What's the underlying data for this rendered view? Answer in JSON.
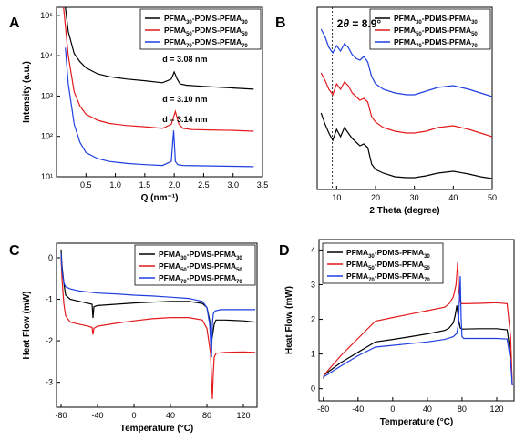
{
  "chart_data": [
    {
      "id": "A",
      "type": "line",
      "panel_label": "A",
      "xlabel": "Q (nm⁻¹)",
      "ylabel": "Intensity (a.u.)",
      "xlim": [
        0,
        3.5
      ],
      "ylim_log10": [
        1,
        5.2
      ],
      "yscale": "log",
      "xticks": [
        0.5,
        1.0,
        1.5,
        2.0,
        2.5,
        3.0,
        3.5
      ],
      "xtick_labels": [
        "0.5",
        "1.0",
        "1.5",
        "2.0",
        "2.5",
        "3.0",
        "3.5"
      ],
      "yticks_log10": [
        1,
        2,
        3,
        4,
        5
      ],
      "ytick_labels": [
        "10¹",
        "10²",
        "10³",
        "10⁴",
        "10⁵"
      ],
      "legend_position": "top-right",
      "series": [
        {
          "name": "PFMA30-PDMS-PFMA30",
          "name_parts": [
            "PFMA",
            "30",
            "-PDMS-PFMA",
            "30"
          ],
          "color": "#000000",
          "x": [
            0.15,
            0.2,
            0.3,
            0.4,
            0.5,
            0.7,
            0.9,
            1.2,
            1.5,
            1.8,
            1.95,
            2.0,
            2.05,
            2.1,
            2.2,
            2.5,
            3.0,
            3.35
          ],
          "y_log10": [
            5.2,
            4.6,
            4.05,
            3.85,
            3.7,
            3.55,
            3.48,
            3.42,
            3.38,
            3.33,
            3.42,
            3.6,
            3.42,
            3.3,
            3.27,
            3.24,
            3.2,
            3.17
          ]
        },
        {
          "name": "PFMA50-PDMS-PFMA50",
          "name_parts": [
            "PFMA",
            "50",
            "-PDMS-PFMA",
            "50"
          ],
          "color": "#e41a1c",
          "x": [
            0.12,
            0.2,
            0.3,
            0.4,
            0.5,
            0.7,
            0.9,
            1.2,
            1.5,
            1.8,
            1.95,
            2.02,
            2.08,
            2.15,
            2.3,
            2.6,
            3.0,
            3.35
          ],
          "y_log10": [
            5.2,
            4.0,
            3.1,
            2.75,
            2.55,
            2.4,
            2.32,
            2.27,
            2.24,
            2.2,
            2.3,
            2.62,
            2.3,
            2.2,
            2.17,
            2.16,
            2.15,
            2.13
          ]
        },
        {
          "name": "PFMA70-PDMS-PFMA70",
          "name_parts": [
            "PFMA",
            "70",
            "-PDMS-PFMA",
            "70"
          ],
          "color": "#1f3fe0",
          "x": [
            0.15,
            0.2,
            0.3,
            0.4,
            0.5,
            0.7,
            0.9,
            1.2,
            1.5,
            1.8,
            1.95,
            1.99,
            2.02,
            2.06,
            2.15,
            2.5,
            3.0,
            3.35
          ],
          "y_log10": [
            4.2,
            3.3,
            2.3,
            1.85,
            1.6,
            1.45,
            1.38,
            1.33,
            1.3,
            1.28,
            1.38,
            2.15,
            1.38,
            1.3,
            1.28,
            1.27,
            1.26,
            1.25
          ]
        }
      ],
      "annotations": [
        {
          "text": "d = 3.08 nm",
          "x": 1.8,
          "y_log10": 3.85
        },
        {
          "text": "d = 3.10 nm",
          "x": 1.8,
          "y_log10": 2.85
        },
        {
          "text": "d = 3.14 nm",
          "x": 1.8,
          "y_log10": 2.35
        }
      ]
    },
    {
      "id": "B",
      "type": "line",
      "panel_label": "B",
      "xlabel": "2 Theta (degree)",
      "ylabel": "",
      "xlim": [
        5,
        50
      ],
      "ylim": [
        0,
        100
      ],
      "xticks": [
        10,
        20,
        30,
        40,
        50
      ],
      "xtick_labels": [
        "10",
        "20",
        "30",
        "40",
        "50"
      ],
      "yticks": [],
      "legend_position": "top-right",
      "dashed_line_x": 8.9,
      "annotation_parts": [
        "2",
        "θ",
        " = 8.9°"
      ],
      "series": [
        {
          "name": "PFMA30-PDMS-PFMA30",
          "name_parts": [
            "PFMA",
            "30",
            "-PDMS-PFMA",
            "30"
          ],
          "color": "#000000",
          "x": [
            6,
            7,
            8,
            9,
            10,
            11,
            12,
            13,
            14,
            15,
            16,
            17,
            18,
            19,
            20,
            22,
            25,
            28,
            30,
            33,
            36,
            40,
            44,
            47,
            50
          ],
          "y": [
            42,
            36,
            31,
            27,
            33,
            29,
            34,
            31,
            28,
            26,
            24,
            25,
            23,
            14,
            11,
            9,
            7,
            6.5,
            6.5,
            7.5,
            9,
            10,
            8.5,
            7,
            6
          ]
        },
        {
          "name": "PFMA50-PDMS-PFMA50",
          "name_parts": [
            "PFMA",
            "50",
            "-PDMS-PFMA",
            "50"
          ],
          "color": "#e41a1c",
          "x": [
            6,
            7,
            8,
            9,
            10,
            11,
            12,
            13,
            14,
            15,
            16,
            17,
            18,
            19,
            20,
            22,
            25,
            28,
            30,
            33,
            36,
            40,
            44,
            47,
            50
          ],
          "y": [
            64,
            60,
            55,
            52,
            58,
            55,
            59,
            57,
            53,
            51,
            49,
            50,
            48,
            40,
            37,
            34,
            32,
            31,
            31,
            32,
            34,
            35,
            33,
            31,
            29
          ]
        },
        {
          "name": "PFMA70-PDMS-PFMA70",
          "name_parts": [
            "PFMA",
            "70",
            "-PDMS-PFMA",
            "70"
          ],
          "color": "#1f3fe0",
          "x": [
            6,
            7,
            8,
            9,
            10,
            11,
            12,
            13,
            14,
            15,
            16,
            17,
            18,
            19,
            20,
            22,
            25,
            28,
            30,
            33,
            36,
            40,
            44,
            47,
            50
          ],
          "y": [
            88,
            84,
            78,
            75,
            79,
            76,
            80,
            78,
            74,
            72,
            71,
            73,
            70,
            62,
            58,
            55,
            53,
            52,
            52,
            54,
            56,
            57,
            55,
            53,
            51
          ]
        }
      ]
    },
    {
      "id": "C",
      "type": "line",
      "panel_label": "C",
      "xlabel": "Temperature (°C)",
      "ylabel": "Heat Flow (mW)",
      "xlim": [
        -85,
        135
      ],
      "ylim": [
        -3.6,
        0.35
      ],
      "xticks": [
        -80,
        -40,
        0,
        40,
        80,
        120
      ],
      "xtick_labels": [
        "-80",
        "-40",
        "0",
        "40",
        "80",
        "120"
      ],
      "yticks": [
        0,
        -1,
        -2,
        -3
      ],
      "ytick_labels": [
        "0",
        "-1",
        "-2",
        "-3"
      ],
      "legend_position": "top-right",
      "series": [
        {
          "name": "PFMA30-PDMS-PFMA30",
          "name_parts": [
            "PFMA",
            "30",
            "-PDMS-PFMA",
            "30"
          ],
          "color": "#000000",
          "x": [
            -80,
            -79,
            -77,
            -75,
            -70,
            -60,
            -50,
            -46,
            -45,
            -44,
            -40,
            -20,
            0,
            20,
            40,
            60,
            75,
            80,
            83,
            85,
            86,
            88,
            90,
            100,
            120,
            133
          ],
          "y": [
            0.2,
            -0.2,
            -0.6,
            -0.9,
            -1.0,
            -1.05,
            -1.1,
            -1.12,
            -1.45,
            -1.18,
            -1.15,
            -1.12,
            -1.09,
            -1.07,
            -1.05,
            -1.05,
            -1.1,
            -1.2,
            -1.5,
            -2.0,
            -1.9,
            -1.6,
            -1.5,
            -1.5,
            -1.52,
            -1.55
          ]
        },
        {
          "name": "PFMA50-PDMS-PFMA50",
          "name_parts": [
            "PFMA",
            "50",
            "-PDMS-PFMA",
            "50"
          ],
          "color": "#e41a1c",
          "x": [
            -80,
            -79,
            -77,
            -75,
            -70,
            -60,
            -50,
            -46,
            -45,
            -44,
            -40,
            -20,
            0,
            20,
            40,
            60,
            75,
            80,
            84,
            86,
            87,
            88,
            90,
            100,
            120,
            133
          ],
          "y": [
            0.0,
            -0.5,
            -1.1,
            -1.4,
            -1.55,
            -1.6,
            -1.65,
            -1.68,
            -1.85,
            -1.7,
            -1.65,
            -1.58,
            -1.52,
            -1.47,
            -1.44,
            -1.44,
            -1.5,
            -1.7,
            -2.3,
            -3.4,
            -2.8,
            -2.4,
            -2.3,
            -2.28,
            -2.27,
            -2.28
          ]
        },
        {
          "name": "PFMA70-PDMS-PFMA70",
          "name_parts": [
            "PFMA",
            "70",
            "-PDMS-PFMA",
            "70"
          ],
          "color": "#1f3fe0",
          "x": [
            -80,
            -79,
            -77,
            -75,
            -70,
            -60,
            -40,
            -20,
            0,
            20,
            40,
            60,
            75,
            80,
            83,
            85,
            86,
            87,
            89,
            95,
            110,
            133
          ],
          "y": [
            0.1,
            -0.3,
            -0.6,
            -0.7,
            -0.75,
            -0.8,
            -0.85,
            -0.87,
            -0.9,
            -0.92,
            -0.95,
            -0.98,
            -1.05,
            -1.2,
            -1.6,
            -2.4,
            -1.6,
            -1.35,
            -1.28,
            -1.25,
            -1.25,
            -1.25
          ]
        }
      ]
    },
    {
      "id": "D",
      "type": "line",
      "panel_label": "D",
      "xlabel": "Temperature (°C)",
      "ylabel": "Heat Flow (mW)",
      "xlim": [
        -85,
        140
      ],
      "ylim": [
        -0.35,
        4.3
      ],
      "xticks": [
        -80,
        -40,
        0,
        40,
        80,
        120
      ],
      "xtick_labels": [
        "-80",
        "-40",
        "0",
        "40",
        "80",
        "120"
      ],
      "yticks": [
        0,
        1,
        2,
        3,
        4
      ],
      "ytick_labels": [
        "0",
        "1",
        "2",
        "3",
        "4"
      ],
      "legend_position": "top-left",
      "series": [
        {
          "name": "PFMA30-PDMS-PFMA30",
          "name_parts": [
            "PFMA",
            "30",
            "-PDMS-PFMA",
            "30"
          ],
          "color": "#000000",
          "x": [
            -80,
            -79,
            -60,
            -40,
            -20,
            0,
            20,
            40,
            60,
            65,
            70,
            72,
            74,
            76,
            78,
            80,
            100,
            120,
            132,
            136,
            138
          ],
          "y": [
            0.3,
            0.4,
            0.75,
            1.05,
            1.35,
            1.42,
            1.5,
            1.58,
            1.68,
            1.75,
            1.9,
            2.1,
            2.4,
            2.0,
            1.75,
            1.72,
            1.73,
            1.73,
            1.7,
            1.0,
            0.1
          ]
        },
        {
          "name": "PFMA50-PDMS-PFMA50",
          "name_parts": [
            "PFMA",
            "50",
            "-PDMS-PFMA",
            "50"
          ],
          "color": "#e41a1c",
          "x": [
            -80,
            -79,
            -60,
            -40,
            -20,
            0,
            20,
            40,
            60,
            65,
            70,
            73,
            75,
            76,
            78,
            80,
            100,
            120,
            132,
            136,
            138
          ],
          "y": [
            0.3,
            0.4,
            0.95,
            1.45,
            1.95,
            2.05,
            2.15,
            2.25,
            2.35,
            2.45,
            2.65,
            3.0,
            3.65,
            2.9,
            2.5,
            2.45,
            2.46,
            2.48,
            2.45,
            1.5,
            0.1
          ]
        },
        {
          "name": "PFMA70-PDMS-PFMA70",
          "name_parts": [
            "PFMA",
            "70",
            "-PDMS-PFMA",
            "70"
          ],
          "color": "#1f3fe0",
          "x": [
            -80,
            -79,
            -60,
            -40,
            -20,
            0,
            20,
            40,
            60,
            70,
            74,
            76,
            78,
            79,
            80,
            82,
            100,
            120,
            132,
            136,
            138
          ],
          "y": [
            0.3,
            0.35,
            0.65,
            0.95,
            1.2,
            1.25,
            1.3,
            1.35,
            1.42,
            1.5,
            1.6,
            1.9,
            3.25,
            2.0,
            1.5,
            1.45,
            1.45,
            1.45,
            1.43,
            0.8,
            0.1
          ]
        }
      ]
    }
  ]
}
